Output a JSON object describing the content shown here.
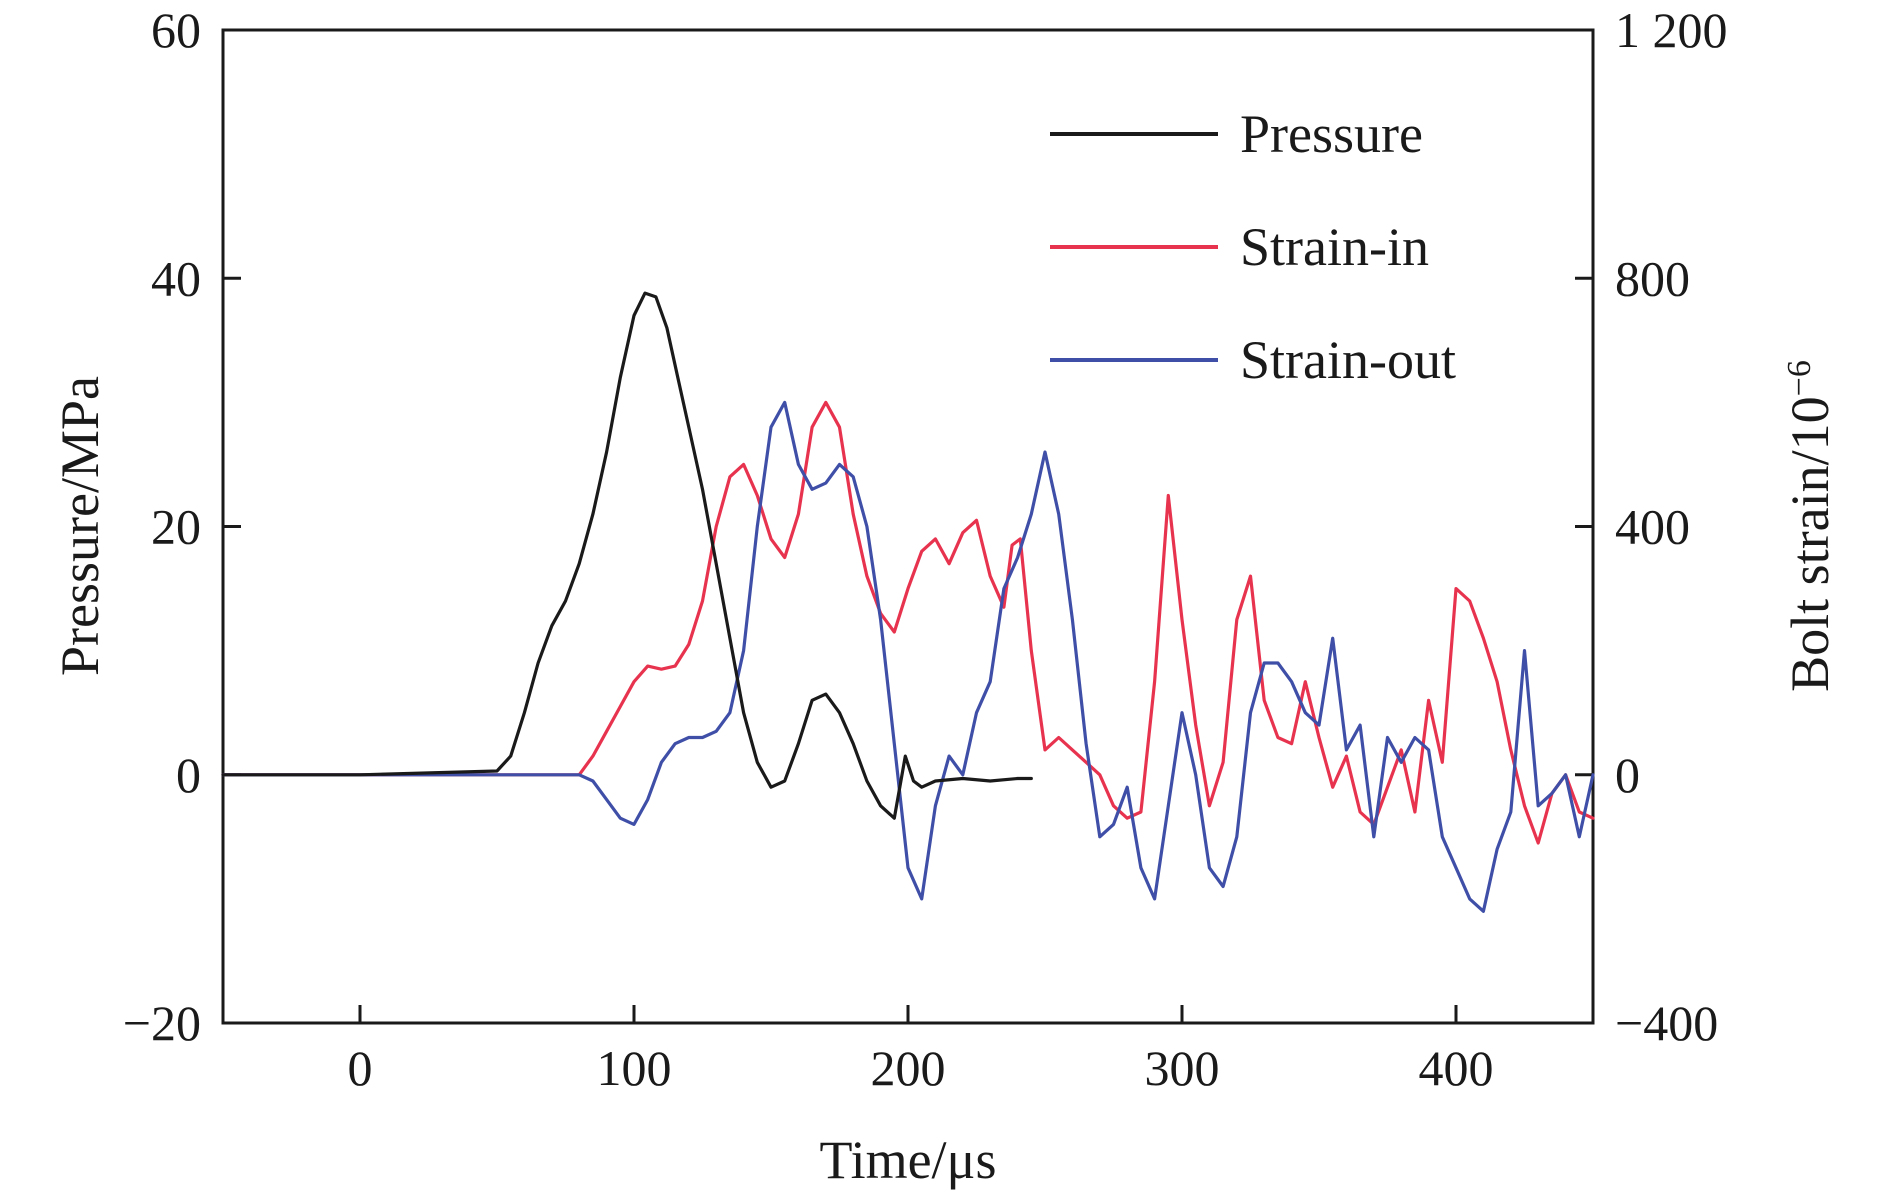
{
  "chart_data": {
    "type": "line",
    "xlabel": "Time/μs",
    "ylabel": "Pressure/MPa",
    "y2label": "Bolt strain/10",
    "y2label_exp": "−6",
    "xlim": [
      -50,
      450
    ],
    "ylim": [
      -20,
      60
    ],
    "y2lim": [
      -400,
      1200
    ],
    "xticks": [
      0,
      100,
      200,
      300,
      400
    ],
    "xtick_labels": [
      "0",
      "100",
      "200",
      "300",
      "400"
    ],
    "yticks": [
      -20,
      0,
      20,
      40,
      60
    ],
    "ytick_labels": [
      "−20",
      "0",
      "20",
      "40",
      "60"
    ],
    "y2ticks": [
      -400,
      0,
      400,
      800,
      1200
    ],
    "y2tick_labels": [
      "−400",
      "0",
      "400",
      "800",
      "1 200"
    ],
    "grid": false,
    "legend_position": "top-right",
    "colors": {
      "pressure": "#1a1a1a",
      "strain_in": "#e8334f",
      "strain_out": "#3f4fa8"
    },
    "series": [
      {
        "name": "Pressure",
        "axis": "left",
        "x": [
          -50,
          0,
          50,
          55,
          60,
          65,
          70,
          75,
          80,
          85,
          90,
          95,
          100,
          104,
          108,
          112,
          116,
          120,
          125,
          130,
          135,
          140,
          145,
          150,
          155,
          160,
          165,
          170,
          175,
          180,
          185,
          190,
          195,
          197,
          199,
          202,
          205,
          210,
          220,
          230,
          240,
          245
        ],
        "y": [
          0,
          0,
          0.3,
          1.5,
          5,
          9,
          12,
          14,
          17,
          21,
          26,
          32,
          37,
          38.8,
          38.5,
          36,
          32,
          28,
          23,
          17,
          11,
          5,
          1,
          -1,
          -0.5,
          2.5,
          6,
          6.5,
          5,
          2.5,
          -0.5,
          -2.5,
          -3.5,
          -1,
          1.5,
          -0.5,
          -1,
          -0.5,
          -0.3,
          -0.5,
          -0.3,
          -0.3
        ]
      },
      {
        "name": "Strain-in",
        "axis": "right",
        "x": [
          -50,
          80,
          85,
          90,
          95,
          100,
          105,
          110,
          115,
          120,
          125,
          130,
          135,
          140,
          145,
          150,
          155,
          160,
          165,
          170,
          175,
          180,
          185,
          190,
          195,
          200,
          205,
          210,
          215,
          220,
          225,
          230,
          235,
          238,
          241,
          245,
          250,
          255,
          260,
          265,
          270,
          275,
          280,
          285,
          290,
          295,
          300,
          305,
          310,
          315,
          320,
          325,
          330,
          335,
          340,
          345,
          350,
          355,
          360,
          365,
          370,
          375,
          380,
          385,
          390,
          395,
          400,
          405,
          410,
          415,
          420,
          425,
          430,
          435,
          440,
          445,
          450
        ],
        "y": [
          0,
          0,
          30,
          70,
          110,
          150,
          175,
          170,
          175,
          210,
          280,
          400,
          480,
          500,
          450,
          380,
          350,
          420,
          560,
          600,
          560,
          420,
          320,
          260,
          230,
          300,
          360,
          380,
          340,
          390,
          410,
          320,
          270,
          370,
          380,
          200,
          40,
          60,
          40,
          20,
          0,
          -50,
          -70,
          -60,
          150,
          450,
          250,
          80,
          -50,
          20,
          250,
          320,
          120,
          60,
          50,
          150,
          60,
          -20,
          30,
          -60,
          -80,
          -20,
          40,
          -60,
          120,
          20,
          300,
          280,
          220,
          150,
          40,
          -50,
          -110,
          -30,
          0,
          -60,
          -70
        ]
      },
      {
        "name": "Strain-out",
        "axis": "right",
        "x": [
          -50,
          80,
          85,
          90,
          95,
          100,
          105,
          110,
          115,
          120,
          125,
          130,
          135,
          140,
          145,
          150,
          155,
          160,
          165,
          170,
          175,
          180,
          185,
          190,
          195,
          200,
          205,
          210,
          215,
          220,
          225,
          230,
          235,
          240,
          245,
          250,
          255,
          260,
          265,
          270,
          275,
          280,
          285,
          290,
          295,
          300,
          305,
          310,
          315,
          320,
          325,
          330,
          335,
          340,
          345,
          350,
          355,
          360,
          365,
          370,
          375,
          380,
          385,
          390,
          395,
          400,
          405,
          410,
          415,
          420,
          425,
          430,
          435,
          440,
          445,
          450
        ],
        "y": [
          0,
          0,
          -10,
          -40,
          -70,
          -80,
          -40,
          20,
          50,
          60,
          60,
          70,
          100,
          200,
          400,
          560,
          600,
          500,
          460,
          470,
          500,
          480,
          400,
          250,
          50,
          -150,
          -200,
          -50,
          30,
          0,
          100,
          150,
          300,
          350,
          420,
          520,
          420,
          250,
          50,
          -100,
          -80,
          -20,
          -150,
          -200,
          -50,
          100,
          0,
          -150,
          -180,
          -100,
          100,
          180,
          180,
          150,
          100,
          80,
          220,
          40,
          80,
          -100,
          60,
          20,
          60,
          40,
          -100,
          -150,
          -200,
          -220,
          -120,
          -60,
          200,
          -50,
          -30,
          0,
          -100,
          0
        ]
      }
    ]
  }
}
